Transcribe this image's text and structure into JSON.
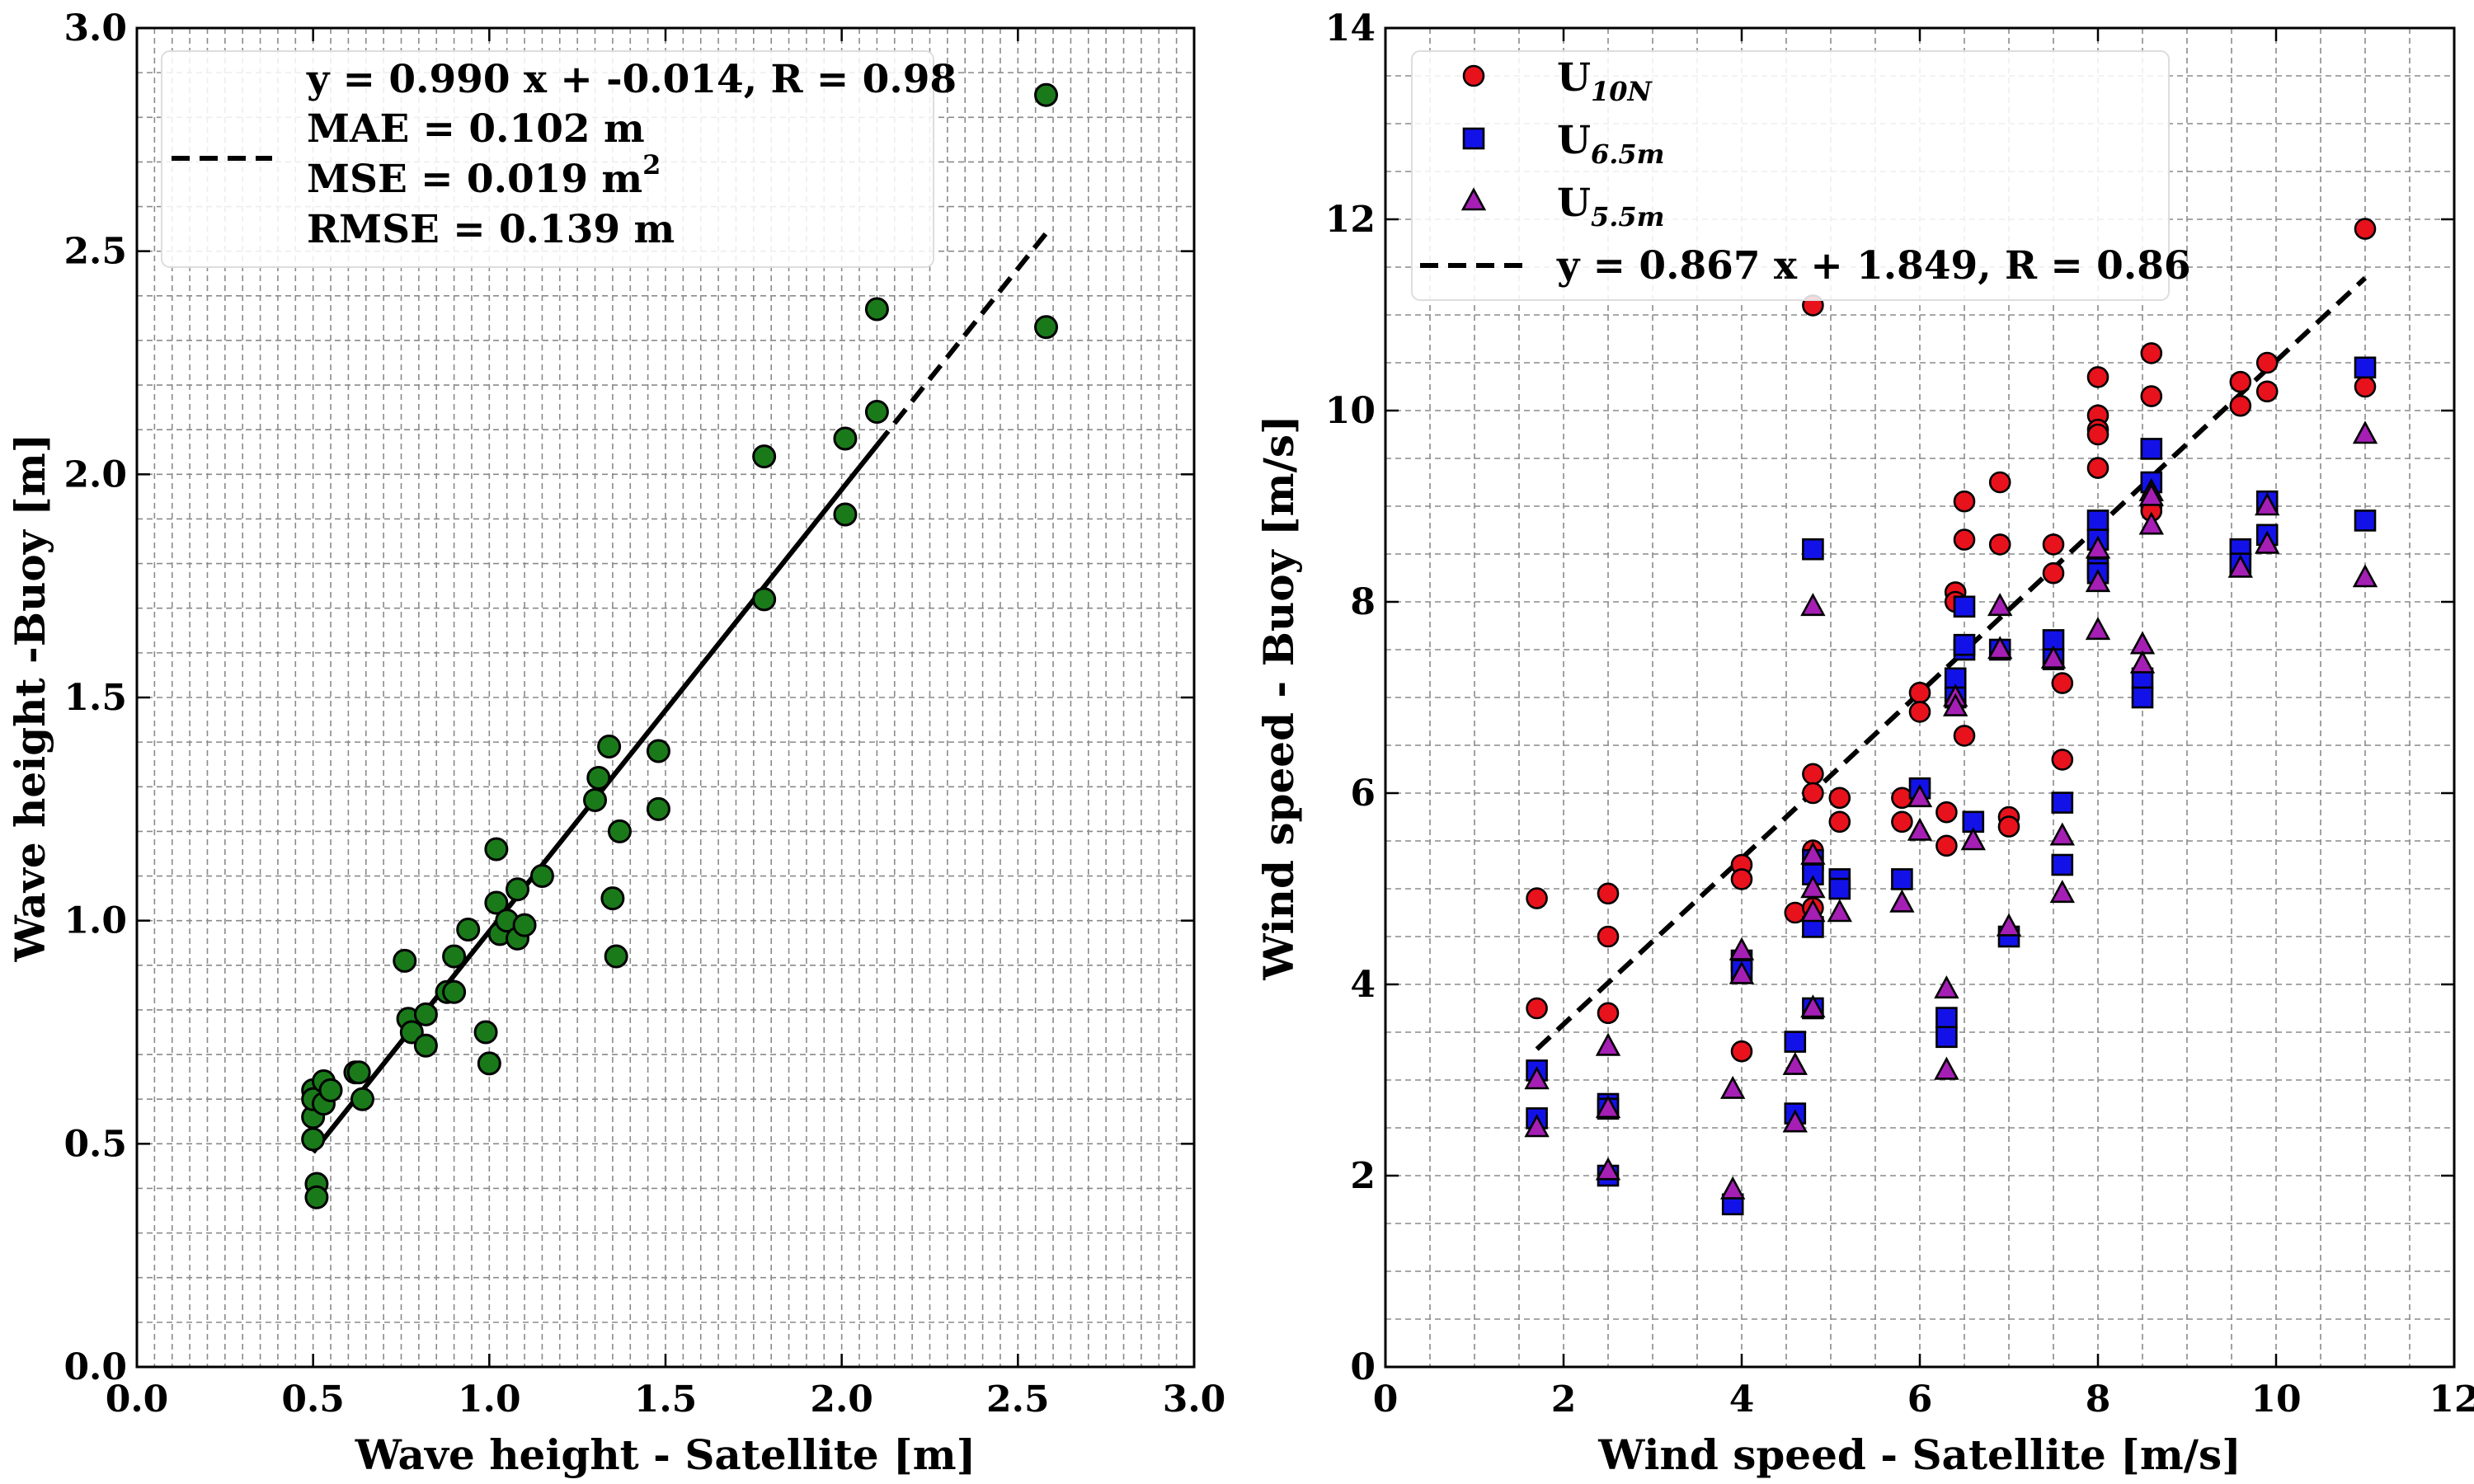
{
  "chart_data": [
    {
      "type": "scatter",
      "xlabel": "Wave height - Satellite [m]",
      "ylabel": "Wave height -Buoy [m]",
      "xlim": [
        0,
        3
      ],
      "ylim": [
        0,
        3
      ],
      "xticks": [
        "0.0",
        "0.5",
        "1.0",
        "1.5",
        "2.0",
        "2.5",
        "3.0"
      ],
      "yticks": [
        "0.0",
        "0.5",
        "1.0",
        "1.5",
        "2.0",
        "2.5",
        "3.0"
      ],
      "grid": true,
      "legend_position": "top-left",
      "colors": {
        "points": "#1a7a1a",
        "fit": "#000000"
      },
      "fit": {
        "slope": 0.99,
        "intercept": -0.014,
        "x_range": [
          0.5,
          2.58
        ],
        "legend_lines": [
          "y = 0.990 x + -0.014, R = 0.98",
          "MAE = 0.102 m",
          "MSE = 0.019 m",
          "RMSE = 0.139 m"
        ],
        "mse_superscript": "2"
      },
      "series": [
        {
          "x": [
            0.5,
            0.5,
            0.5,
            0.5,
            0.51,
            0.51,
            0.53,
            0.53,
            0.55,
            0.62,
            0.63,
            0.64,
            0.76,
            0.77,
            0.78,
            0.82,
            0.82,
            0.88,
            0.9,
            0.9,
            0.94,
            0.99,
            1.0,
            1.02,
            1.02,
            1.03,
            1.05,
            1.08,
            1.08,
            1.1,
            1.15,
            1.3,
            1.31,
            1.34,
            1.35,
            1.36,
            1.37,
            1.48,
            1.48,
            1.78,
            1.78,
            2.01,
            2.01,
            2.1,
            2.1,
            2.58,
            2.58
          ],
          "y": [
            0.62,
            0.56,
            0.51,
            0.6,
            0.41,
            0.38,
            0.64,
            0.59,
            0.62,
            0.66,
            0.66,
            0.6,
            0.91,
            0.78,
            0.75,
            0.79,
            0.72,
            0.84,
            0.92,
            0.84,
            0.98,
            0.75,
            0.68,
            1.16,
            1.04,
            0.97,
            1.0,
            1.07,
            0.96,
            0.99,
            1.1,
            1.27,
            1.32,
            1.39,
            1.05,
            0.92,
            1.2,
            1.38,
            1.25,
            2.04,
            1.72,
            2.08,
            1.91,
            2.37,
            2.14,
            2.85,
            2.33
          ]
        }
      ]
    },
    {
      "type": "scatter",
      "xlabel": "Wind speed - Satellite [m/s]",
      "ylabel": "Wind speed - Buoy [m/s]",
      "xlim": [
        0,
        12
      ],
      "ylim": [
        0,
        14
      ],
      "xticks": [
        "0",
        "2",
        "4",
        "6",
        "8",
        "10",
        "12"
      ],
      "yticks": [
        "0",
        "2",
        "4",
        "6",
        "8",
        "10",
        "12",
        "14"
      ],
      "grid": true,
      "legend_position": "top-left",
      "fit": {
        "slope": 0.867,
        "intercept": 1.849,
        "x_range": [
          1.7,
          11.0
        ],
        "legend_label": "y = 0.867 x + 1.849, R = 0.86"
      },
      "series": [
        {
          "name": "U",
          "name_sub": "10N",
          "marker": "circle",
          "color": "#e8121c",
          "x": [
            1.7,
            1.7,
            2.5,
            2.5,
            2.5,
            4.0,
            4.0,
            4.0,
            4.6,
            4.8,
            4.8,
            4.8,
            4.8,
            4.8,
            5.1,
            5.1,
            5.8,
            5.8,
            6.0,
            6.0,
            6.3,
            6.3,
            6.4,
            6.4,
            6.5,
            6.5,
            6.5,
            6.9,
            6.9,
            7.0,
            7.0,
            7.5,
            7.5,
            7.6,
            7.6,
            8.0,
            8.0,
            8.0,
            8.0,
            8.0,
            8.6,
            8.6,
            8.6,
            8.6,
            9.6,
            9.6,
            9.9,
            9.9,
            11.0,
            11.0
          ],
          "y": [
            4.9,
            3.75,
            4.95,
            4.5,
            3.7,
            5.25,
            5.1,
            3.3,
            4.75,
            11.1,
            6.2,
            6.0,
            5.4,
            4.8,
            5.95,
            5.7,
            5.95,
            5.7,
            7.05,
            6.85,
            5.45,
            5.8,
            8.1,
            8.0,
            9.05,
            8.65,
            6.6,
            9.25,
            8.6,
            5.75,
            5.65,
            8.6,
            8.3,
            7.15,
            6.35,
            10.35,
            9.95,
            9.8,
            9.75,
            9.4,
            10.6,
            10.15,
            9.0,
            8.95,
            10.3,
            10.05,
            10.5,
            10.2,
            11.9,
            10.25
          ]
        },
        {
          "name": "U",
          "name_sub": "6.5m",
          "marker": "square",
          "color": "#1212e8",
          "x": [
            1.7,
            1.7,
            2.5,
            2.5,
            2.5,
            4.0,
            4.0,
            3.9,
            4.6,
            4.6,
            4.8,
            4.8,
            4.8,
            4.8,
            4.8,
            5.1,
            5.1,
            5.8,
            6.0,
            6.3,
            6.3,
            6.4,
            6.4,
            6.5,
            6.5,
            6.5,
            6.6,
            6.9,
            7.0,
            7.5,
            7.5,
            7.6,
            7.6,
            8.0,
            8.0,
            8.0,
            8.0,
            8.6,
            8.6,
            8.5,
            8.5,
            9.6,
            9.6,
            9.9,
            9.9,
            11.0,
            11.0
          ],
          "y": [
            3.1,
            2.6,
            2.75,
            2.7,
            2.0,
            4.25,
            4.15,
            1.7,
            3.4,
            2.65,
            8.55,
            5.3,
            5.15,
            4.6,
            3.75,
            5.1,
            5.0,
            5.1,
            6.05,
            3.65,
            3.45,
            7.2,
            7.0,
            7.95,
            7.5,
            7.55,
            5.7,
            7.5,
            4.5,
            7.6,
            7.4,
            5.9,
            5.25,
            8.85,
            8.65,
            8.35,
            8.3,
            9.6,
            9.25,
            7.2,
            7.0,
            8.55,
            8.4,
            9.05,
            8.7,
            10.45,
            8.85
          ]
        },
        {
          "name": "U",
          "name_sub": "5.5m",
          "marker": "triangle",
          "color": "#a51fb5",
          "x": [
            1.7,
            1.7,
            2.5,
            2.5,
            2.5,
            4.0,
            4.0,
            3.9,
            3.9,
            4.6,
            4.6,
            4.8,
            4.8,
            4.8,
            4.8,
            4.8,
            5.1,
            5.8,
            6.0,
            6.0,
            6.3,
            6.3,
            6.4,
            6.4,
            6.6,
            6.9,
            6.9,
            7.0,
            7.5,
            7.6,
            7.6,
            8.0,
            8.0,
            8.0,
            8.6,
            8.6,
            8.6,
            8.5,
            8.5,
            9.6,
            9.9,
            9.9,
            11.0,
            11.0
          ],
          "y": [
            3.0,
            2.5,
            3.35,
            2.7,
            2.05,
            4.35,
            4.1,
            2.9,
            1.85,
            3.15,
            2.55,
            7.95,
            5.35,
            5.0,
            4.75,
            3.75,
            4.75,
            4.85,
            5.6,
            5.95,
            3.95,
            3.1,
            7.0,
            6.9,
            5.5,
            7.95,
            7.5,
            4.6,
            7.4,
            5.55,
            4.95,
            8.55,
            8.2,
            7.7,
            9.15,
            8.8,
            9.1,
            7.55,
            7.35,
            8.35,
            9.0,
            8.6,
            9.75,
            8.25
          ]
        }
      ]
    }
  ]
}
